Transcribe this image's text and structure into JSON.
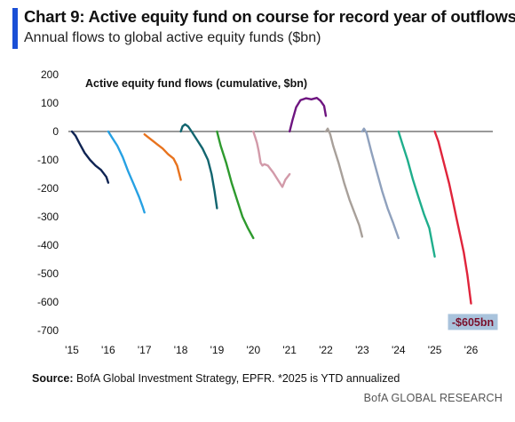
{
  "header": {
    "title": "Chart 9: Active equity fund on course for record year of outflows",
    "subtitle": "Annual flows to global active equity funds ($bn)"
  },
  "footer": {
    "source_label": "Source:",
    "source_text": "BofA Global Investment Strategy, EPFR. *2025 is YTD annualized",
    "brand": "BofA GLOBAL RESEARCH"
  },
  "colors": {
    "accent": "#1a4fd6",
    "callout_bg": "#a9c3dc",
    "zero_line": "#333333"
  },
  "chart_data": {
    "type": "line",
    "title": "Active equity fund flows (cumulative, $bn)",
    "xlabel": "",
    "ylabel": "",
    "xlim": [
      2015.0,
      2026.6
    ],
    "ylim": [
      -700,
      200
    ],
    "yticks": [
      200,
      100,
      0,
      -100,
      -200,
      -300,
      -400,
      -500,
      -600,
      -700
    ],
    "xticks": [
      {
        "value": 2015,
        "label": "'15"
      },
      {
        "value": 2016,
        "label": "'16"
      },
      {
        "value": 2017,
        "label": "'17"
      },
      {
        "value": 2018,
        "label": "'18"
      },
      {
        "value": 2019,
        "label": "'19"
      },
      {
        "value": 2020,
        "label": "'20"
      },
      {
        "value": 2021,
        "label": "'21"
      },
      {
        "value": 2022,
        "label": "'22"
      },
      {
        "value": 2023,
        "label": "'23"
      },
      {
        "value": 2024,
        "label": "'24"
      },
      {
        "value": 2025,
        "label": "'25"
      },
      {
        "value": 2026,
        "label": "'26"
      }
    ],
    "grid": false,
    "legend": "none",
    "series": [
      {
        "color": "#0f2453",
        "x": [
          2015.0,
          2015.1,
          2015.2,
          2015.35,
          2015.5,
          2015.65,
          2015.8,
          2015.95,
          2016.0
        ],
        "y": [
          0,
          -15,
          -40,
          -75,
          -100,
          -120,
          -135,
          -160,
          -180
        ]
      },
      {
        "color": "#27a1e3",
        "x": [
          2016.0,
          2016.1,
          2016.25,
          2016.4,
          2016.55,
          2016.7,
          2016.85,
          2016.95,
          2017.0
        ],
        "y": [
          0,
          -20,
          -50,
          -90,
          -140,
          -185,
          -230,
          -265,
          -285
        ]
      },
      {
        "color": "#e8731e",
        "x": [
          2017.0,
          2017.1,
          2017.25,
          2017.35,
          2017.5,
          2017.65,
          2017.8,
          2017.9,
          2018.0
        ],
        "y": [
          -10,
          -20,
          -35,
          -45,
          -60,
          -80,
          -95,
          -120,
          -170
        ]
      },
      {
        "color": "#12656f",
        "x": [
          2018.0,
          2018.05,
          2018.12,
          2018.2,
          2018.3,
          2018.45,
          2018.6,
          2018.75,
          2018.85,
          2018.93,
          2019.0
        ],
        "y": [
          0,
          18,
          25,
          18,
          0,
          -30,
          -60,
          -100,
          -150,
          -210,
          -270
        ]
      },
      {
        "color": "#2e9a2e",
        "x": [
          2019.0,
          2019.1,
          2019.25,
          2019.4,
          2019.55,
          2019.7,
          2019.85,
          2020.0
        ],
        "y": [
          0,
          -50,
          -110,
          -180,
          -240,
          -300,
          -340,
          -375
        ]
      },
      {
        "color": "#d29aa9",
        "x": [
          2020.0,
          2020.05,
          2020.1,
          2020.15,
          2020.2,
          2020.25,
          2020.3,
          2020.4,
          2020.55,
          2020.7,
          2020.8,
          2020.88,
          2021.0
        ],
        "y": [
          0,
          -20,
          -40,
          -70,
          -110,
          -120,
          -115,
          -120,
          -145,
          -175,
          -195,
          -170,
          -150
        ]
      },
      {
        "color": "#6e1580",
        "x": [
          2021.0,
          2021.08,
          2021.18,
          2021.3,
          2021.45,
          2021.6,
          2021.75,
          2021.85,
          2021.95,
          2022.0
        ],
        "y": [
          0,
          40,
          85,
          110,
          117,
          113,
          118,
          108,
          90,
          55
        ]
      },
      {
        "color": "#a8a09a",
        "x": [
          2022.0,
          2022.05,
          2022.12,
          2022.2,
          2022.35,
          2022.5,
          2022.65,
          2022.8,
          2022.92,
          2023.0
        ],
        "y": [
          0,
          10,
          -10,
          -50,
          -110,
          -180,
          -240,
          -290,
          -330,
          -370
        ]
      },
      {
        "color": "#8fa1bd",
        "x": [
          2023.0,
          2023.05,
          2023.12,
          2023.25,
          2023.4,
          2023.55,
          2023.7,
          2023.85,
          2024.0
        ],
        "y": [
          0,
          10,
          -5,
          -70,
          -140,
          -210,
          -270,
          -320,
          -375
        ]
      },
      {
        "color": "#1fae8c",
        "x": [
          2024.0,
          2024.1,
          2024.25,
          2024.4,
          2024.55,
          2024.7,
          2024.85,
          2025.0
        ],
        "y": [
          0,
          -40,
          -100,
          -170,
          -230,
          -290,
          -340,
          -440
        ]
      },
      {
        "color": "#e0243b",
        "x": [
          2025.0,
          2025.1,
          2025.2,
          2025.3,
          2025.4,
          2025.5,
          2025.6,
          2025.7,
          2025.8,
          2025.9,
          2026.0
        ],
        "y": [
          0,
          -35,
          -85,
          -135,
          -185,
          -245,
          -305,
          -365,
          -425,
          -505,
          -605
        ]
      }
    ],
    "annotations": [
      {
        "text": "-$605bn",
        "x": 2026.05,
        "y": -670
      }
    ]
  }
}
